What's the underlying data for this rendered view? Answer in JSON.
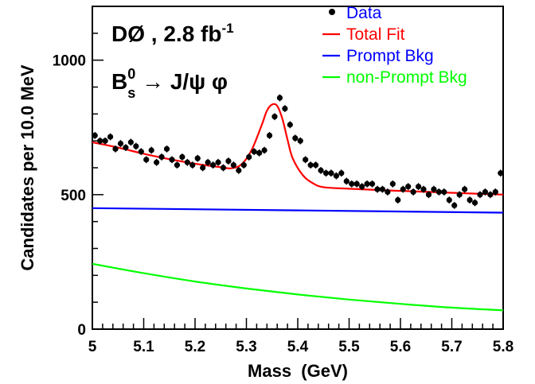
{
  "chart_data": {
    "type": "scatter",
    "xlabel": "Mass  (GeV)",
    "ylabel": "Candidates per 10.0 MeV",
    "xlim": [
      5.0,
      5.8
    ],
    "ylim": [
      0,
      1200
    ],
    "x_ticks": [
      "5",
      "5.1",
      "5.2",
      "5.3",
      "5.4",
      "5.5",
      "5.6",
      "5.7",
      "5.8"
    ],
    "y_ticks": [
      "0",
      "500",
      "1000"
    ],
    "grid": false,
    "legend_position": "top-right",
    "annotations": {
      "experiment": "DØ , 2.8 fb",
      "experiment_sup": "-1",
      "decay_B": "B",
      "decay_sup": "0",
      "decay_sub": "s",
      "decay_rest": " → J/ψ φ"
    },
    "legend": [
      {
        "label": "Data",
        "kind": "marker",
        "color": "#000000"
      },
      {
        "label": "Total Fit",
        "kind": "line",
        "color": "#ff0000"
      },
      {
        "label": "Prompt Bkg",
        "kind": "line",
        "color": "#0000ff"
      },
      {
        "label": "non-Prompt Bkg",
        "kind": "line",
        "color": "#00ff00"
      }
    ],
    "series": [
      {
        "name": "Data",
        "type": "points_with_errors",
        "color": "#000000",
        "error": 13,
        "x": [
          5.005,
          5.015,
          5.025,
          5.035,
          5.045,
          5.055,
          5.065,
          5.075,
          5.085,
          5.095,
          5.105,
          5.115,
          5.125,
          5.135,
          5.145,
          5.155,
          5.165,
          5.175,
          5.185,
          5.195,
          5.205,
          5.215,
          5.225,
          5.235,
          5.245,
          5.255,
          5.265,
          5.275,
          5.285,
          5.295,
          5.305,
          5.315,
          5.325,
          5.335,
          5.345,
          5.355,
          5.365,
          5.375,
          5.385,
          5.395,
          5.405,
          5.415,
          5.425,
          5.435,
          5.445,
          5.455,
          5.465,
          5.475,
          5.485,
          5.495,
          5.505,
          5.515,
          5.525,
          5.535,
          5.545,
          5.555,
          5.565,
          5.575,
          5.585,
          5.595,
          5.605,
          5.615,
          5.625,
          5.635,
          5.645,
          5.655,
          5.665,
          5.675,
          5.685,
          5.695,
          5.705,
          5.715,
          5.725,
          5.735,
          5.745,
          5.755,
          5.765,
          5.775,
          5.785,
          5.795
        ],
        "y": [
          720,
          700,
          700,
          715,
          670,
          690,
          675,
          695,
          680,
          660,
          630,
          665,
          620,
          640,
          670,
          630,
          610,
          640,
          620,
          610,
          635,
          600,
          620,
          610,
          620,
          600,
          625,
          610,
          590,
          610,
          640,
          660,
          655,
          665,
          720,
          790,
          860,
          820,
          760,
          710,
          700,
          630,
          610,
          610,
          590,
          580,
          580,
          570,
          580,
          550,
          540,
          540,
          530,
          540,
          540,
          520,
          520,
          510,
          540,
          480,
          520,
          530,
          510,
          530,
          520,
          500,
          520,
          510,
          510,
          480,
          460,
          500,
          520,
          480,
          470,
          500,
          510,
          500,
          510,
          580
        ]
      },
      {
        "name": "Total Fit",
        "type": "line",
        "color": "#ff0000",
        "x": [
          5.0,
          5.05,
          5.1,
          5.15,
          5.2,
          5.25,
          5.27,
          5.29,
          5.31,
          5.33,
          5.34,
          5.35,
          5.36,
          5.37,
          5.38,
          5.39,
          5.41,
          5.43,
          5.45,
          5.5,
          5.6,
          5.7,
          5.8
        ],
        "y": [
          695,
          675,
          652,
          632,
          615,
          602,
          598,
          612,
          665,
          760,
          812,
          835,
          830,
          782,
          705,
          636,
          572,
          542,
          528,
          522,
          514,
          507,
          500
        ]
      },
      {
        "name": "Prompt Bkg",
        "type": "line",
        "color": "#0000ff",
        "x": [
          5.0,
          5.8
        ],
        "y": [
          450,
          433
        ]
      },
      {
        "name": "non-Prompt Bkg",
        "type": "line",
        "color": "#00ff00",
        "x": [
          5.0,
          5.1,
          5.2,
          5.3,
          5.4,
          5.5,
          5.6,
          5.7,
          5.8
        ],
        "y": [
          243,
          208,
          177,
          151,
          129,
          110,
          94,
          80,
          70
        ]
      }
    ]
  }
}
